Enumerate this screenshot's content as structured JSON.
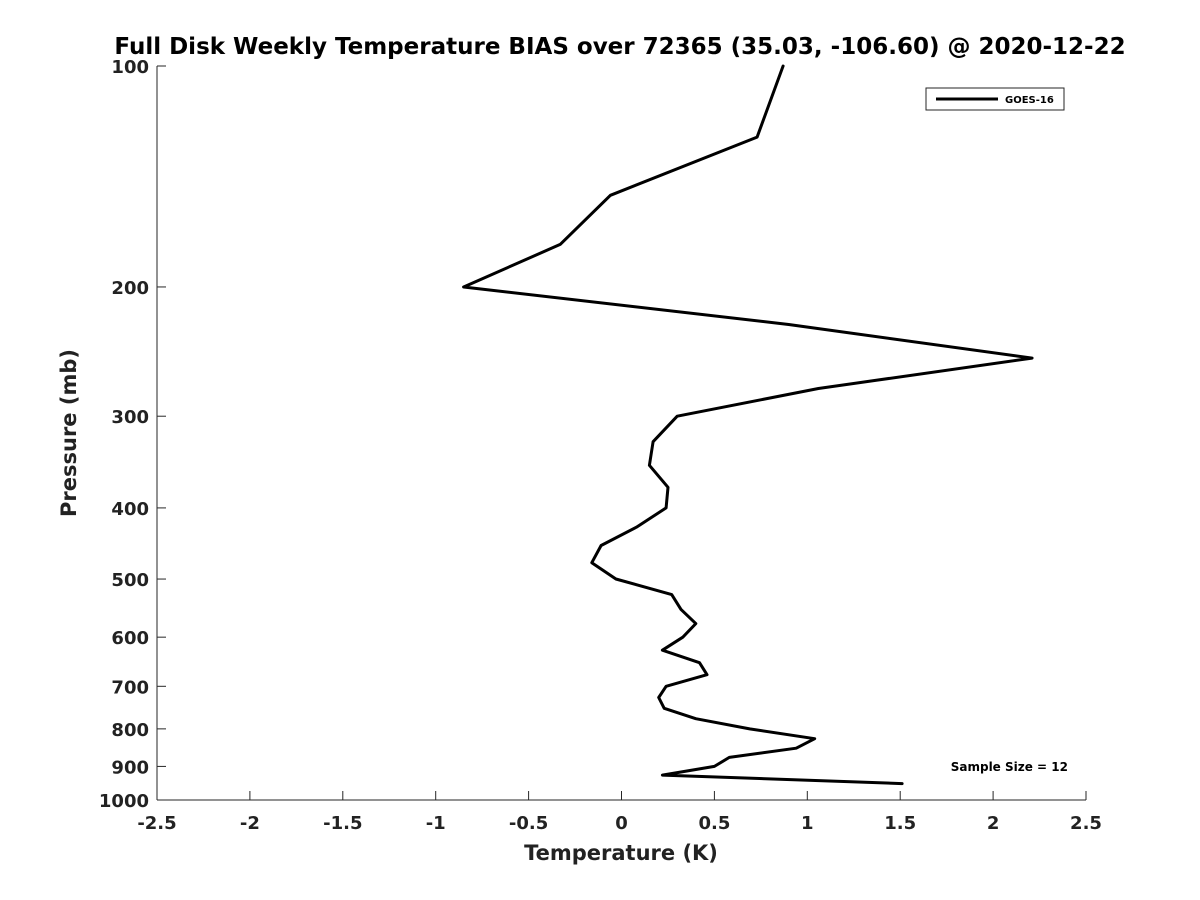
{
  "chart_data": {
    "type": "line",
    "title": "Full Disk Weekly Temperature BIAS over 72365 (35.03, -106.60) @ 2020-12-22",
    "xlabel": "Temperature (K)",
    "ylabel": "Pressure (mb)",
    "xlim": [
      -2.5,
      2.5
    ],
    "ylim": [
      1000,
      100
    ],
    "yscale": "log",
    "xticks": [
      -2.5,
      -2,
      -1.5,
      -1,
      -0.5,
      0,
      0.5,
      1,
      1.5,
      2,
      2.5
    ],
    "xtick_labels": [
      "-2.5",
      "-2",
      "-1.5",
      "-1",
      "-0.5",
      "0",
      "0.5",
      "1",
      "1.5",
      "2",
      "2.5"
    ],
    "yticks": [
      100,
      200,
      300,
      400,
      500,
      600,
      700,
      800,
      900,
      1000
    ],
    "ytick_labels": [
      "100",
      "200",
      "300",
      "400",
      "500",
      "600",
      "700",
      "800",
      "900",
      "1000"
    ],
    "grid": false,
    "legend_position": "top-right",
    "series": [
      {
        "name": "GOES-16",
        "color": "#000000",
        "points": [
          {
            "x": 0.87,
            "y": 100
          },
          {
            "x": 0.73,
            "y": 125
          },
          {
            "x": -0.06,
            "y": 150
          },
          {
            "x": -0.33,
            "y": 175
          },
          {
            "x": -0.85,
            "y": 200
          },
          {
            "x": 0.9,
            "y": 225
          },
          {
            "x": 2.21,
            "y": 250
          },
          {
            "x": 1.06,
            "y": 275
          },
          {
            "x": 0.3,
            "y": 300
          },
          {
            "x": 0.17,
            "y": 325
          },
          {
            "x": 0.15,
            "y": 350
          },
          {
            "x": 0.25,
            "y": 375
          },
          {
            "x": 0.24,
            "y": 400
          },
          {
            "x": 0.08,
            "y": 425
          },
          {
            "x": -0.11,
            "y": 450
          },
          {
            "x": -0.16,
            "y": 475
          },
          {
            "x": -0.03,
            "y": 500
          },
          {
            "x": 0.27,
            "y": 525
          },
          {
            "x": 0.32,
            "y": 550
          },
          {
            "x": 0.4,
            "y": 575
          },
          {
            "x": 0.33,
            "y": 600
          },
          {
            "x": 0.22,
            "y": 625
          },
          {
            "x": 0.42,
            "y": 650
          },
          {
            "x": 0.46,
            "y": 675
          },
          {
            "x": 0.24,
            "y": 700
          },
          {
            "x": 0.2,
            "y": 725
          },
          {
            "x": 0.23,
            "y": 750
          },
          {
            "x": 0.4,
            "y": 775
          },
          {
            "x": 0.69,
            "y": 800
          },
          {
            "x": 1.04,
            "y": 825
          },
          {
            "x": 0.94,
            "y": 850
          },
          {
            "x": 0.58,
            "y": 875
          },
          {
            "x": 0.5,
            "y": 900
          },
          {
            "x": 0.22,
            "y": 925
          },
          {
            "x": 1.51,
            "y": 950
          }
        ]
      }
    ],
    "annotation": "Sample Size = 12"
  }
}
